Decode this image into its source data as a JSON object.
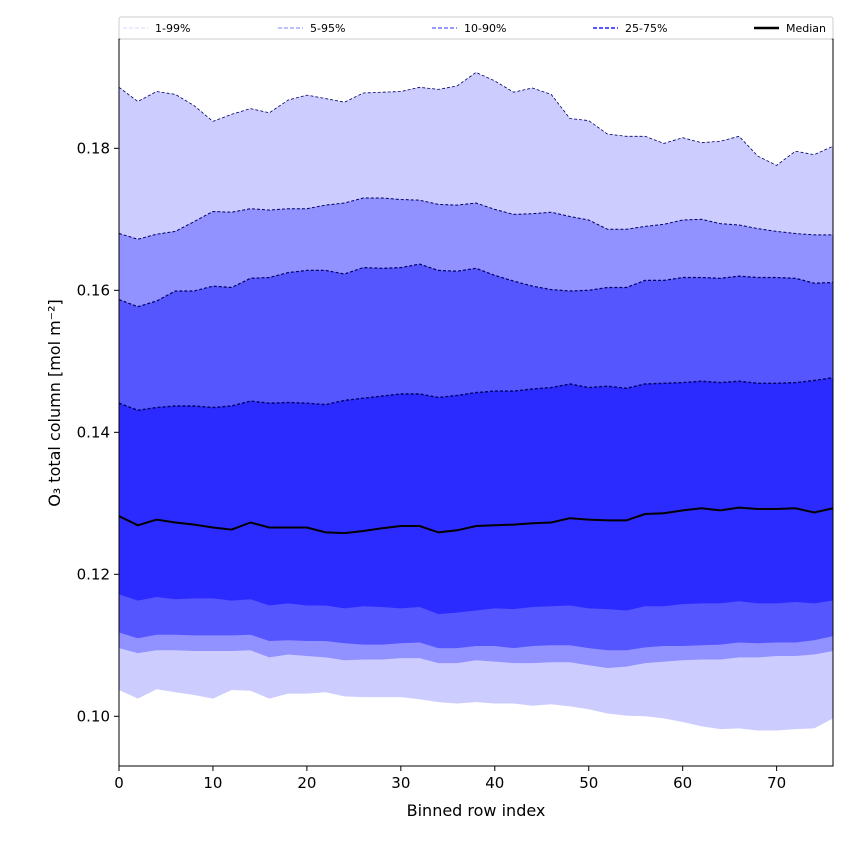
{
  "chart_data": {
    "type": "area",
    "title": "",
    "xlabel": "Binned row index",
    "ylabel": "O₃ total column [mol m⁻²]",
    "xlim": [
      0,
      76
    ],
    "ylim": [
      0.093,
      0.1954
    ],
    "xticks": [
      0,
      10,
      20,
      30,
      40,
      50,
      60,
      70
    ],
    "yticks": [
      0.1,
      0.12,
      0.14,
      0.16,
      0.18
    ],
    "ytick_labels": [
      "0.10",
      "0.12",
      "0.14",
      "0.16",
      "0.18"
    ],
    "grid": false,
    "legend_placement": "top, above plot",
    "x": [
      0,
      2,
      4,
      6,
      8,
      10,
      12,
      14,
      16,
      18,
      20,
      22,
      24,
      26,
      28,
      30,
      32,
      34,
      36,
      38,
      40,
      42,
      44,
      46,
      48,
      50,
      52,
      54,
      56,
      58,
      60,
      62,
      64,
      66,
      68,
      70,
      72,
      74,
      76
    ],
    "percentiles": {
      "p1": [
        0.1037,
        0.1025,
        0.1038,
        0.1034,
        0.103,
        0.1025,
        0.1037,
        0.1036,
        0.1025,
        0.1032,
        0.1032,
        0.1034,
        0.1028,
        0.1027,
        0.1027,
        0.1027,
        0.1024,
        0.102,
        0.1018,
        0.102,
        0.1018,
        0.1018,
        0.1015,
        0.1017,
        0.1014,
        0.101,
        0.1004,
        0.1001,
        0.1,
        0.0997,
        0.0992,
        0.0986,
        0.0982,
        0.0983,
        0.098,
        0.098,
        0.0982,
        0.0983,
        0.0997
      ],
      "p5": [
        0.1096,
        0.1089,
        0.1093,
        0.1093,
        0.1092,
        0.1092,
        0.1092,
        0.1093,
        0.1083,
        0.1087,
        0.1085,
        0.1083,
        0.1079,
        0.108,
        0.108,
        0.1082,
        0.1082,
        0.1075,
        0.1075,
        0.1079,
        0.1077,
        0.1075,
        0.1075,
        0.1076,
        0.1076,
        0.1072,
        0.1068,
        0.107,
        0.1075,
        0.1077,
        0.1079,
        0.108,
        0.108,
        0.1083,
        0.1083,
        0.1085,
        0.1085,
        0.1087,
        0.1092
      ],
      "p10": [
        0.1118,
        0.111,
        0.1115,
        0.1115,
        0.1114,
        0.1114,
        0.1114,
        0.1115,
        0.1106,
        0.1107,
        0.1106,
        0.1106,
        0.1103,
        0.1101,
        0.1101,
        0.1103,
        0.1104,
        0.1096,
        0.1096,
        0.1099,
        0.1099,
        0.1096,
        0.1099,
        0.11,
        0.11,
        0.1096,
        0.1093,
        0.1093,
        0.1097,
        0.1099,
        0.1099,
        0.11,
        0.1101,
        0.1104,
        0.1103,
        0.1104,
        0.1104,
        0.1107,
        0.1113
      ],
      "p25": [
        0.1172,
        0.1163,
        0.1168,
        0.1165,
        0.1166,
        0.1166,
        0.1163,
        0.1165,
        0.1156,
        0.1159,
        0.1156,
        0.1156,
        0.1152,
        0.1155,
        0.1154,
        0.1152,
        0.1154,
        0.1144,
        0.1146,
        0.1149,
        0.1152,
        0.1151,
        0.1154,
        0.1155,
        0.1156,
        0.1152,
        0.1151,
        0.1149,
        0.1155,
        0.1155,
        0.1158,
        0.1159,
        0.1159,
        0.1162,
        0.1159,
        0.1159,
        0.1161,
        0.1159,
        0.1163
      ],
      "p50": [
        0.1282,
        0.1269,
        0.1277,
        0.1273,
        0.127,
        0.1266,
        0.1263,
        0.1273,
        0.1266,
        0.1266,
        0.1266,
        0.1259,
        0.1258,
        0.1261,
        0.1265,
        0.1268,
        0.1268,
        0.1259,
        0.1262,
        0.1268,
        0.1269,
        0.127,
        0.1272,
        0.1273,
        0.1279,
        0.1277,
        0.1276,
        0.1276,
        0.1285,
        0.1286,
        0.129,
        0.1293,
        0.129,
        0.1294,
        0.1292,
        0.1292,
        0.1293,
        0.1287,
        0.1293
      ],
      "p75": [
        0.1441,
        0.1431,
        0.1435,
        0.1437,
        0.1437,
        0.1435,
        0.1437,
        0.1444,
        0.1441,
        0.1442,
        0.1441,
        0.1439,
        0.1445,
        0.1448,
        0.1451,
        0.1454,
        0.1454,
        0.1449,
        0.1452,
        0.1456,
        0.1458,
        0.1458,
        0.1461,
        0.1463,
        0.1468,
        0.1463,
        0.1465,
        0.1462,
        0.1468,
        0.1469,
        0.147,
        0.1472,
        0.147,
        0.1472,
        0.1469,
        0.1469,
        0.147,
        0.1473,
        0.1477
      ],
      "p90": [
        0.1587,
        0.1577,
        0.1585,
        0.1599,
        0.1599,
        0.1606,
        0.1604,
        0.1617,
        0.1618,
        0.1625,
        0.1628,
        0.1628,
        0.1623,
        0.1632,
        0.1631,
        0.1632,
        0.1637,
        0.1628,
        0.1627,
        0.1631,
        0.1621,
        0.1613,
        0.1606,
        0.1601,
        0.1599,
        0.16,
        0.1604,
        0.1604,
        0.1614,
        0.1614,
        0.1618,
        0.1618,
        0.1617,
        0.162,
        0.1618,
        0.1618,
        0.1617,
        0.161,
        0.1611
      ],
      "p95": [
        0.168,
        0.1672,
        0.1679,
        0.1683,
        0.1697,
        0.1711,
        0.171,
        0.1715,
        0.1713,
        0.1715,
        0.1715,
        0.172,
        0.1723,
        0.173,
        0.173,
        0.1728,
        0.1727,
        0.1721,
        0.172,
        0.1723,
        0.1714,
        0.1707,
        0.1708,
        0.171,
        0.1704,
        0.1699,
        0.1686,
        0.1686,
        0.169,
        0.1693,
        0.1699,
        0.17,
        0.1694,
        0.1692,
        0.1687,
        0.1683,
        0.168,
        0.1678,
        0.1678
      ],
      "p99": [
        0.1886,
        0.1866,
        0.188,
        0.1876,
        0.186,
        0.1838,
        0.1848,
        0.1856,
        0.185,
        0.1868,
        0.1875,
        0.187,
        0.1865,
        0.1878,
        0.1879,
        0.188,
        0.1886,
        0.1883,
        0.1888,
        0.1907,
        0.1895,
        0.1879,
        0.1885,
        0.1876,
        0.1842,
        0.1839,
        0.182,
        0.1817,
        0.1817,
        0.1807,
        0.1815,
        0.1808,
        0.181,
        0.1817,
        0.1789,
        0.1776,
        0.1796,
        0.1791,
        0.1803
      ]
    },
    "series": [
      {
        "name": "1-99%",
        "lower": "p1",
        "upper": "p99",
        "fill": "#ccccff",
        "legend_color": "#ccccff"
      },
      {
        "name": "5-95%",
        "lower": "p5",
        "upper": "p95",
        "fill": "#9191ff",
        "legend_color": "#9999ff"
      },
      {
        "name": "10-90%",
        "lower": "p10",
        "upper": "p90",
        "fill": "#5656ff",
        "legend_color": "#7777ff"
      },
      {
        "name": "25-75%",
        "lower": "p25",
        "upper": "p75",
        "fill": "#2b2bff",
        "legend_color": "#5555ff"
      },
      {
        "name": "Median",
        "line": "p50",
        "legend_color": "#000000"
      }
    ]
  }
}
